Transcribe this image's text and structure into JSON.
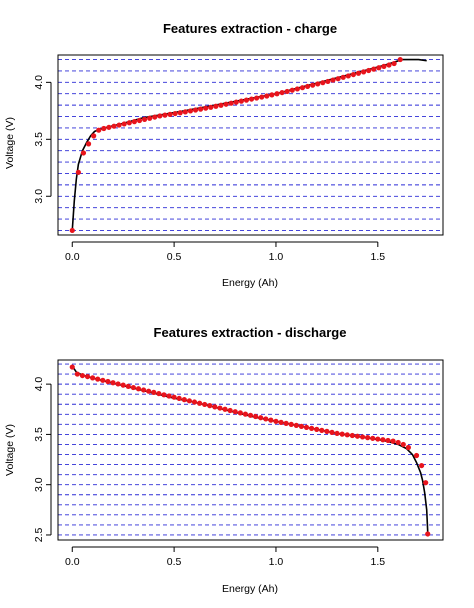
{
  "colors": {
    "curve": "#000000",
    "points": "#e8141c",
    "gridlines": "#2b2bd6",
    "frame": "#000000"
  },
  "chart_data": [
    {
      "type": "line",
      "title": "Features extraction - charge",
      "xlabel": "Energy (Ah)",
      "ylabel": "Voltage (V)",
      "xlim": [
        -0.07,
        1.82
      ],
      "ylim": [
        2.66,
        4.24
      ],
      "xticks": [
        0.0,
        0.5,
        1.0,
        1.5
      ],
      "xtick_labels": [
        "0.0",
        "0.5",
        "1.0",
        "1.5"
      ],
      "yticks": [
        3.0,
        3.5,
        4.0
      ],
      "ytick_labels": [
        "3.0",
        "3.5",
        "4.0"
      ],
      "hlines": [
        2.7,
        2.8,
        2.9,
        3.0,
        3.1,
        3.2,
        3.3,
        3.4,
        3.5,
        3.6,
        3.7,
        3.8,
        3.9,
        4.0,
        4.1,
        4.2
      ],
      "series": [
        {
          "style": "line",
          "x": [
            0.0,
            0.01,
            0.02,
            0.03,
            0.05,
            0.07,
            0.09,
            0.11,
            0.14,
            0.18,
            0.25,
            0.35,
            0.45,
            0.55,
            0.7,
            0.85,
            1.0,
            1.15,
            1.3,
            1.45,
            1.55,
            1.62,
            1.66,
            1.7,
            1.74
          ],
          "y": [
            2.7,
            2.96,
            3.15,
            3.28,
            3.4,
            3.47,
            3.53,
            3.57,
            3.59,
            3.61,
            3.64,
            3.69,
            3.72,
            3.75,
            3.8,
            3.85,
            3.9,
            3.97,
            4.04,
            4.11,
            4.16,
            4.2,
            4.2,
            4.2,
            4.19
          ]
        },
        {
          "style": "points",
          "x": [
            0.0,
            0.03,
            0.055,
            0.08,
            0.105,
            0.13,
            0.155,
            0.18,
            0.205,
            0.23,
            0.255,
            0.28,
            0.305,
            0.33,
            0.355,
            0.38,
            0.405,
            0.43,
            0.455,
            0.48,
            0.505,
            0.53,
            0.555,
            0.58,
            0.605,
            0.63,
            0.655,
            0.68,
            0.705,
            0.73,
            0.755,
            0.78,
            0.805,
            0.83,
            0.855,
            0.88,
            0.905,
            0.93,
            0.955,
            0.98,
            1.005,
            1.03,
            1.055,
            1.08,
            1.105,
            1.13,
            1.155,
            1.18,
            1.205,
            1.23,
            1.255,
            1.28,
            1.305,
            1.33,
            1.355,
            1.38,
            1.405,
            1.43,
            1.455,
            1.48,
            1.505,
            1.53,
            1.555,
            1.58,
            1.61
          ],
          "y": [
            2.7,
            3.21,
            3.38,
            3.46,
            3.53,
            3.58,
            3.595,
            3.605,
            3.615,
            3.625,
            3.635,
            3.645,
            3.655,
            3.665,
            3.675,
            3.685,
            3.695,
            3.705,
            3.712,
            3.719,
            3.726,
            3.733,
            3.741,
            3.749,
            3.757,
            3.765,
            3.773,
            3.781,
            3.79,
            3.799,
            3.808,
            3.817,
            3.826,
            3.835,
            3.844,
            3.853,
            3.862,
            3.871,
            3.88,
            3.89,
            3.9,
            3.91,
            3.92,
            3.931,
            3.942,
            3.953,
            3.964,
            3.975,
            3.986,
            3.997,
            4.008,
            4.02,
            4.032,
            4.044,
            4.056,
            4.068,
            4.08,
            4.092,
            4.104,
            4.116,
            4.128,
            4.14,
            4.152,
            4.165,
            4.2
          ]
        }
      ]
    },
    {
      "type": "line",
      "title": "Features extraction - discharge",
      "xlabel": "Energy (Ah)",
      "ylabel": "Voltage (V)",
      "xlim": [
        -0.07,
        1.82
      ],
      "ylim": [
        2.45,
        4.24
      ],
      "xticks": [
        0.0,
        0.5,
        1.0,
        1.5
      ],
      "xtick_labels": [
        "0.0",
        "0.5",
        "1.0",
        "1.5"
      ],
      "yticks": [
        2.5,
        3.0,
        3.5,
        4.0
      ],
      "ytick_labels": [
        "2.5",
        "3.0",
        "3.5",
        "4.0"
      ],
      "hlines": [
        2.5,
        2.6,
        2.7,
        2.8,
        2.9,
        3.0,
        3.1,
        3.2,
        3.3,
        3.4,
        3.5,
        3.6,
        3.7,
        3.8,
        3.9,
        4.0,
        4.1,
        4.2
      ],
      "series": [
        {
          "style": "line",
          "x": [
            0.0,
            0.02,
            0.05,
            0.1,
            0.2,
            0.3,
            0.4,
            0.5,
            0.6,
            0.7,
            0.8,
            0.9,
            1.0,
            1.1,
            1.2,
            1.3,
            1.4,
            1.5,
            1.55,
            1.6,
            1.64,
            1.67,
            1.69,
            1.71,
            1.72,
            1.73,
            1.74,
            1.745
          ],
          "y": [
            4.18,
            4.12,
            4.09,
            4.06,
            4.01,
            3.96,
            3.91,
            3.86,
            3.82,
            3.77,
            3.72,
            3.67,
            3.63,
            3.59,
            3.55,
            3.51,
            3.48,
            3.45,
            3.43,
            3.4,
            3.36,
            3.3,
            3.22,
            3.12,
            3.04,
            2.92,
            2.75,
            2.53
          ]
        },
        {
          "style": "points",
          "x": [
            0.0,
            0.025,
            0.05,
            0.075,
            0.1,
            0.125,
            0.15,
            0.175,
            0.2,
            0.225,
            0.25,
            0.275,
            0.3,
            0.325,
            0.35,
            0.375,
            0.4,
            0.425,
            0.45,
            0.475,
            0.5,
            0.525,
            0.55,
            0.575,
            0.6,
            0.625,
            0.65,
            0.675,
            0.7,
            0.725,
            0.75,
            0.775,
            0.8,
            0.825,
            0.85,
            0.875,
            0.9,
            0.925,
            0.95,
            0.975,
            1.0,
            1.025,
            1.05,
            1.075,
            1.1,
            1.125,
            1.15,
            1.175,
            1.2,
            1.225,
            1.25,
            1.275,
            1.3,
            1.325,
            1.35,
            1.375,
            1.4,
            1.425,
            1.45,
            1.475,
            1.5,
            1.525,
            1.55,
            1.575,
            1.6,
            1.625,
            1.65,
            1.69,
            1.715,
            1.735,
            1.745
          ],
          "y": [
            4.17,
            4.1,
            4.085,
            4.075,
            4.062,
            4.05,
            4.038,
            4.026,
            4.014,
            4.002,
            3.99,
            3.978,
            3.966,
            3.954,
            3.942,
            3.93,
            3.918,
            3.906,
            3.894,
            3.882,
            3.87,
            3.858,
            3.846,
            3.834,
            3.822,
            3.81,
            3.798,
            3.786,
            3.774,
            3.762,
            3.75,
            3.738,
            3.726,
            3.714,
            3.702,
            3.69,
            3.678,
            3.666,
            3.654,
            3.642,
            3.63,
            3.62,
            3.61,
            3.6,
            3.59,
            3.58,
            3.57,
            3.56,
            3.55,
            3.54,
            3.53,
            3.52,
            3.51,
            3.503,
            3.496,
            3.489,
            3.482,
            3.475,
            3.468,
            3.461,
            3.454,
            3.447,
            3.44,
            3.433,
            3.42,
            3.4,
            3.37,
            3.29,
            3.19,
            3.02,
            2.51
          ]
        }
      ]
    }
  ]
}
